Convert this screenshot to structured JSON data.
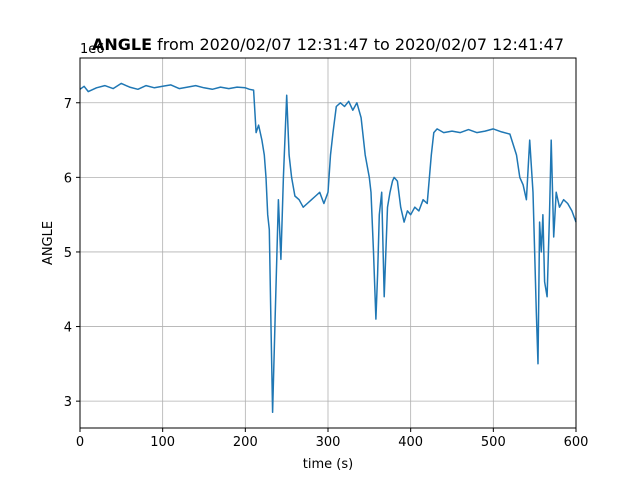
{
  "chart_data": {
    "type": "line",
    "title_bold": "ANGLE",
    "title_rest": " from 2020/02/07 12:31:47 to 2020/02/07 12:41:47",
    "xlabel": "time (s)",
    "ylabel": "ANGLE",
    "offset_label": "1e6",
    "xlim": [
      0,
      600
    ],
    "ylim": [
      2640000,
      7600000
    ],
    "xticks": [
      0,
      100,
      200,
      300,
      400,
      500,
      600
    ],
    "yticks": [
      3,
      4,
      5,
      6,
      7
    ],
    "grid": true,
    "line_color": "#1f77b4",
    "series": [
      {
        "x": [
          0,
          5,
          10,
          20,
          30,
          40,
          50,
          60,
          70,
          80,
          90,
          100,
          110,
          120,
          130,
          140,
          150,
          160,
          170,
          180,
          190,
          200,
          205,
          210,
          213,
          216,
          220,
          223,
          225,
          227,
          229,
          231,
          233,
          236,
          240,
          243,
          246,
          250,
          253,
          256,
          260,
          265,
          270,
          275,
          280,
          285,
          290,
          295,
          300,
          303,
          306,
          310,
          315,
          320,
          325,
          330,
          335,
          340,
          345,
          350,
          352,
          355,
          358,
          360,
          362,
          365,
          368,
          372,
          375,
          378,
          380,
          384,
          388,
          392,
          396,
          400,
          405,
          410,
          415,
          420,
          425,
          428,
          432,
          440,
          450,
          460,
          470,
          480,
          490,
          500,
          510,
          520,
          528,
          532,
          536,
          540,
          544,
          548,
          552,
          554,
          556,
          558,
          560,
          562,
          565,
          568,
          570,
          573,
          576,
          580,
          585,
          590,
          595,
          600
        ],
        "y": [
          7180000,
          7220000,
          7150000,
          7200000,
          7230000,
          7190000,
          7260000,
          7210000,
          7180000,
          7230000,
          7200000,
          7220000,
          7240000,
          7190000,
          7210000,
          7230000,
          7200000,
          7180000,
          7210000,
          7190000,
          7210000,
          7200000,
          7180000,
          7170000,
          6600000,
          6700000,
          6500000,
          6300000,
          6000000,
          5500000,
          5300000,
          4000000,
          2850000,
          4100000,
          5700000,
          4900000,
          6000000,
          7100000,
          6300000,
          6000000,
          5750000,
          5700000,
          5600000,
          5650000,
          5700000,
          5750000,
          5800000,
          5650000,
          5800000,
          6300000,
          6600000,
          6950000,
          7000000,
          6950000,
          7020000,
          6900000,
          7000000,
          6800000,
          6300000,
          6000000,
          5800000,
          5000000,
          4100000,
          4700000,
          5500000,
          5800000,
          4400000,
          5600000,
          5800000,
          5950000,
          6000000,
          5950000,
          5600000,
          5400000,
          5550000,
          5500000,
          5600000,
          5550000,
          5700000,
          5650000,
          6300000,
          6600000,
          6650000,
          6600000,
          6620000,
          6600000,
          6640000,
          6600000,
          6620000,
          6650000,
          6610000,
          6580000,
          6300000,
          6000000,
          5900000,
          5700000,
          6500000,
          5800000,
          4200000,
          3500000,
          5400000,
          5000000,
          5500000,
          4600000,
          4400000,
          5500000,
          6500000,
          5200000,
          5800000,
          5600000,
          5700000,
          5650000,
          5550000,
          5400000
        ]
      }
    ]
  }
}
